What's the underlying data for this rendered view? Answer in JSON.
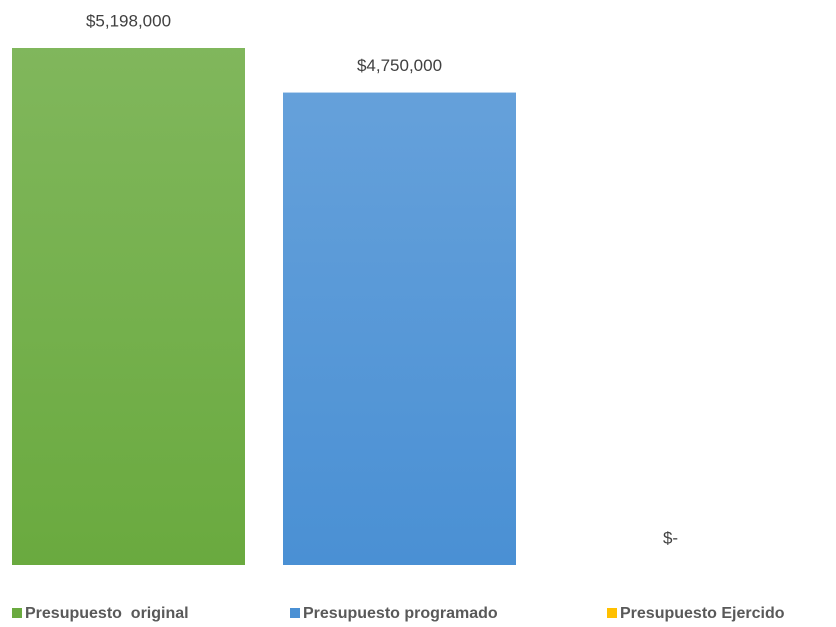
{
  "chart_data": {
    "type": "bar",
    "series": [
      {
        "name": "Presupuesto  original",
        "color": "#6aaa3f",
        "values": [
          5198000
        ],
        "value_labels": [
          "$5,198,000"
        ]
      },
      {
        "name": "Presupuesto programado",
        "color": "#4a90d4",
        "values": [
          4750000
        ],
        "value_labels": [
          "$4,750,000"
        ]
      },
      {
        "name": "Presupuesto Ejercido",
        "color": "#ffc000",
        "values": [
          0
        ],
        "value_labels": [
          "$-"
        ]
      }
    ]
  }
}
